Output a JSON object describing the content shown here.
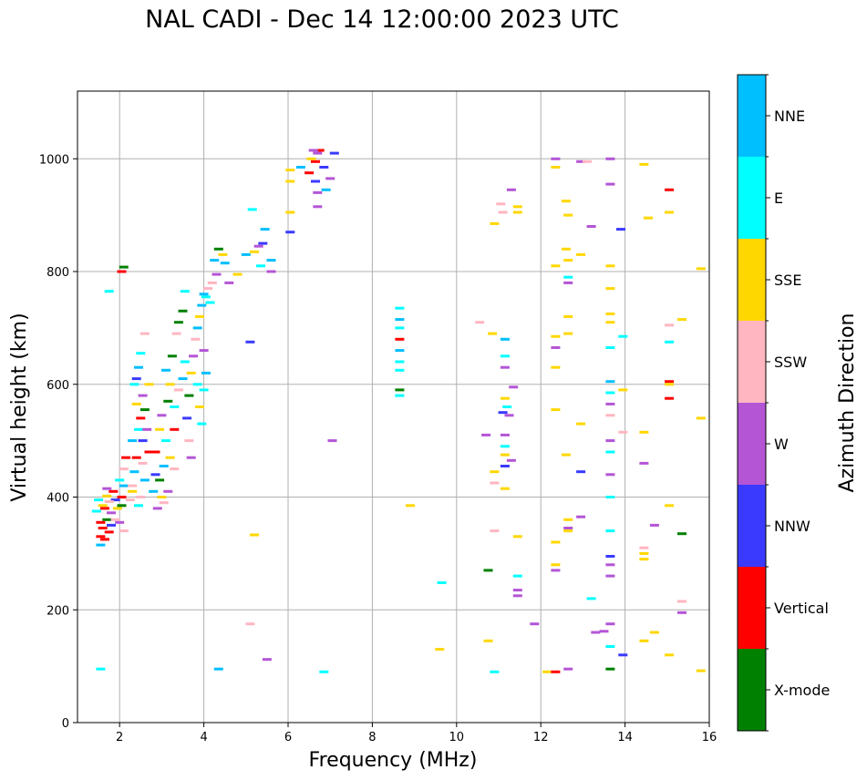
{
  "chart_data": {
    "type": "scatter",
    "title": "NAL CADI - Dec 14 12:00:00 2023 UTC",
    "xlabel": "Frequency (MHz)",
    "ylabel": "Virtual height (km)",
    "xlim": [
      1,
      16
    ],
    "ylim": [
      0,
      1120
    ],
    "xticks": [
      2,
      4,
      6,
      8,
      10,
      12,
      14,
      16
    ],
    "yticks": [
      0,
      200,
      400,
      600,
      800,
      1000
    ],
    "grid": true,
    "colorbar": {
      "label": "Azimuth Direction",
      "categories": [
        {
          "name": "X-mode",
          "color": "#008000"
        },
        {
          "name": "Vertical",
          "color": "#ff0000"
        },
        {
          "name": "NNW",
          "color": "#3a3aff"
        },
        {
          "name": "W",
          "color": "#b455d6"
        },
        {
          "name": "SSW",
          "color": "#ffb6c1"
        },
        {
          "name": "SSE",
          "color": "#ffd700"
        },
        {
          "name": "E",
          "color": "#00ffff"
        },
        {
          "name": "NNE",
          "color": "#00bfff"
        }
      ]
    },
    "points": [
      [
        1.55,
        330,
        "Vertical"
      ],
      [
        1.6,
        345,
        "Vertical"
      ],
      [
        1.65,
        325,
        "Vertical"
      ],
      [
        1.7,
        360,
        "X-mode"
      ],
      [
        1.75,
        338,
        "Vertical"
      ],
      [
        1.8,
        372,
        "W"
      ],
      [
        1.6,
        385,
        "SSE"
      ],
      [
        1.5,
        395,
        "E"
      ],
      [
        1.7,
        402,
        "SSE"
      ],
      [
        1.85,
        410,
        "Vertical"
      ],
      [
        1.9,
        395,
        "NNW"
      ],
      [
        1.55,
        355,
        "Vertical"
      ],
      [
        1.65,
        380,
        "Vertical"
      ],
      [
        1.75,
        392,
        "SSW"
      ],
      [
        1.95,
        380,
        "SSE"
      ],
      [
        2.0,
        355,
        "W"
      ],
      [
        1.45,
        375,
        "E"
      ],
      [
        1.55,
        315,
        "NNE"
      ],
      [
        1.8,
        350,
        "NNW"
      ],
      [
        1.9,
        360,
        "SSW"
      ],
      [
        2.05,
        400,
        "Vertical"
      ],
      [
        2.1,
        420,
        "NNE"
      ],
      [
        2.0,
        430,
        "E"
      ],
      [
        2.1,
        450,
        "SSW"
      ],
      [
        2.15,
        470,
        "Vertical"
      ],
      [
        2.05,
        385,
        "X-mode"
      ],
      [
        2.1,
        340,
        "SSW"
      ],
      [
        1.7,
        415,
        "W"
      ],
      [
        2.3,
        420,
        "SSW"
      ],
      [
        2.35,
        445,
        "NNE"
      ],
      [
        2.4,
        470,
        "Vertical"
      ],
      [
        2.3,
        500,
        "NNE"
      ],
      [
        2.45,
        520,
        "E"
      ],
      [
        2.5,
        540,
        "Vertical"
      ],
      [
        2.4,
        565,
        "SSE"
      ],
      [
        2.55,
        580,
        "W"
      ],
      [
        2.35,
        600,
        "E"
      ],
      [
        2.45,
        630,
        "NNE"
      ],
      [
        2.5,
        655,
        "E"
      ],
      [
        2.6,
        690,
        "SSW"
      ],
      [
        2.3,
        410,
        "SSE"
      ],
      [
        2.5,
        400,
        "SSW"
      ],
      [
        2.6,
        430,
        "NNE"
      ],
      [
        2.7,
        480,
        "Vertical"
      ],
      [
        2.65,
        520,
        "W"
      ],
      [
        2.55,
        460,
        "SSW"
      ],
      [
        2.25,
        395,
        "SSW"
      ],
      [
        2.45,
        385,
        "E"
      ],
      [
        2.6,
        555,
        "X-mode"
      ],
      [
        2.7,
        600,
        "SSE"
      ],
      [
        2.55,
        500,
        "NNW"
      ],
      [
        2.4,
        610,
        "NNW"
      ],
      [
        2.9,
        380,
        "W"
      ],
      [
        3.0,
        400,
        "SSE"
      ],
      [
        2.95,
        430,
        "X-mode"
      ],
      [
        3.05,
        455,
        "NNE"
      ],
      [
        2.85,
        480,
        "Vertical"
      ],
      [
        3.1,
        500,
        "E"
      ],
      [
        2.95,
        520,
        "SSE"
      ],
      [
        3.0,
        545,
        "W"
      ],
      [
        3.15,
        570,
        "X-mode"
      ],
      [
        3.2,
        600,
        "SSE"
      ],
      [
        3.1,
        625,
        "NNE"
      ],
      [
        3.25,
        650,
        "X-mode"
      ],
      [
        3.2,
        470,
        "SSE"
      ],
      [
        3.3,
        450,
        "SSW"
      ],
      [
        2.85,
        440,
        "NNW"
      ],
      [
        3.05,
        390,
        "SSW"
      ],
      [
        3.15,
        410,
        "W"
      ],
      [
        3.3,
        520,
        "Vertical"
      ],
      [
        3.35,
        690,
        "SSW"
      ],
      [
        3.4,
        710,
        "X-mode"
      ],
      [
        3.5,
        730,
        "X-mode"
      ],
      [
        3.3,
        560,
        "E"
      ],
      [
        2.8,
        410,
        "NNE"
      ],
      [
        3.4,
        590,
        "SSW"
      ],
      [
        3.6,
        540,
        "NNW"
      ],
      [
        3.65,
        580,
        "X-mode"
      ],
      [
        3.7,
        620,
        "SSE"
      ],
      [
        3.75,
        650,
        "W"
      ],
      [
        3.8,
        680,
        "SSW"
      ],
      [
        3.85,
        600,
        "E"
      ],
      [
        3.9,
        560,
        "SSE"
      ],
      [
        3.95,
        530,
        "E"
      ],
      [
        3.65,
        500,
        "SSW"
      ],
      [
        3.7,
        470,
        "W"
      ],
      [
        4.0,
        590,
        "E"
      ],
      [
        4.05,
        620,
        "NNE"
      ],
      [
        3.5,
        610,
        "NNE"
      ],
      [
        3.55,
        640,
        "E"
      ],
      [
        4.0,
        660,
        "W"
      ],
      [
        3.85,
        700,
        "NNE"
      ],
      [
        3.9,
        720,
        "SSE"
      ],
      [
        3.95,
        740,
        "NNE"
      ],
      [
        4.05,
        755,
        "E"
      ],
      [
        4.1,
        770,
        "SSW"
      ],
      [
        4.2,
        780,
        "SSW"
      ],
      [
        4.3,
        795,
        "W"
      ],
      [
        4.25,
        820,
        "NNE"
      ],
      [
        4.35,
        840,
        "X-mode"
      ],
      [
        4.0,
        760,
        "NNE"
      ],
      [
        4.15,
        745,
        "E"
      ],
      [
        3.55,
        765,
        "E"
      ],
      [
        4.45,
        830,
        "SSE"
      ],
      [
        4.6,
        780,
        "W"
      ],
      [
        4.8,
        795,
        "SSE"
      ],
      [
        4.5,
        815,
        "NNE"
      ],
      [
        5.0,
        830,
        "NNE"
      ],
      [
        5.2,
        835,
        "SSE"
      ],
      [
        5.4,
        850,
        "NNW"
      ],
      [
        5.45,
        875,
        "NNE"
      ],
      [
        5.6,
        800,
        "W"
      ],
      [
        5.35,
        810,
        "E"
      ],
      [
        5.6,
        820,
        "NNE"
      ],
      [
        5.3,
        845,
        "W"
      ],
      [
        5.15,
        910,
        "E"
      ],
      [
        6.05,
        870,
        "NNW"
      ],
      [
        6.05,
        905,
        "SSE"
      ],
      [
        6.05,
        960,
        "SSE"
      ],
      [
        6.05,
        980,
        "SSE"
      ],
      [
        6.3,
        985,
        "NNE"
      ],
      [
        6.5,
        975,
        "Vertical"
      ],
      [
        6.65,
        960,
        "NNW"
      ],
      [
        6.7,
        940,
        "W"
      ],
      [
        6.7,
        915,
        "W"
      ],
      [
        6.65,
        995,
        "Vertical"
      ],
      [
        6.7,
        1010,
        "W"
      ],
      [
        6.85,
        985,
        "NNW"
      ],
      [
        6.75,
        1015,
        "Vertical"
      ],
      [
        7.0,
        965,
        "W"
      ],
      [
        7.1,
        1010,
        "NNW"
      ],
      [
        6.6,
        1015,
        "W"
      ],
      [
        6.9,
        945,
        "NNE"
      ],
      [
        6.55,
        1000,
        "SSE"
      ],
      [
        1.75,
        765,
        "E"
      ],
      [
        2.05,
        800,
        "Vertical"
      ],
      [
        2.1,
        808,
        "X-mode"
      ],
      [
        1.55,
        95,
        "E"
      ],
      [
        4.35,
        95,
        "NNE"
      ],
      [
        5.1,
        175,
        "SSW"
      ],
      [
        5.5,
        112,
        "W"
      ],
      [
        5.2,
        333,
        "SSE"
      ],
      [
        5.1,
        675,
        "NNW"
      ],
      [
        6.85,
        90,
        "E"
      ],
      [
        7.05,
        500,
        "W"
      ],
      [
        8.65,
        735,
        "E"
      ],
      [
        8.65,
        715,
        "NNE"
      ],
      [
        8.65,
        700,
        "E"
      ],
      [
        8.65,
        680,
        "Vertical"
      ],
      [
        8.65,
        660,
        "NNE"
      ],
      [
        8.65,
        640,
        "E"
      ],
      [
        8.65,
        625,
        "E"
      ],
      [
        8.65,
        590,
        "X-mode"
      ],
      [
        8.65,
        580,
        "E"
      ],
      [
        8.9,
        385,
        "SSE"
      ],
      [
        9.6,
        130,
        "SSE"
      ],
      [
        9.65,
        248,
        "E"
      ],
      [
        10.55,
        710,
        "SSW"
      ],
      [
        10.7,
        510,
        "W"
      ],
      [
        10.75,
        270,
        "X-mode"
      ],
      [
        10.75,
        145,
        "SSE"
      ],
      [
        10.85,
        690,
        "SSE"
      ],
      [
        10.9,
        445,
        "SSE"
      ],
      [
        10.9,
        425,
        "SSW"
      ],
      [
        10.9,
        340,
        "SSW"
      ],
      [
        10.9,
        90,
        "E"
      ],
      [
        10.9,
        885,
        "SSE"
      ],
      [
        11.05,
        920,
        "SSW"
      ],
      [
        11.1,
        905,
        "SSW"
      ],
      [
        11.15,
        680,
        "NNE"
      ],
      [
        11.15,
        650,
        "E"
      ],
      [
        11.15,
        630,
        "W"
      ],
      [
        11.15,
        575,
        "SSE"
      ],
      [
        11.2,
        560,
        "E"
      ],
      [
        11.1,
        550,
        "NNW"
      ],
      [
        11.25,
        545,
        "W"
      ],
      [
        11.15,
        510,
        "W"
      ],
      [
        11.15,
        490,
        "E"
      ],
      [
        11.15,
        475,
        "SSE"
      ],
      [
        11.15,
        455,
        "NNW"
      ],
      [
        11.15,
        415,
        "SSE"
      ],
      [
        11.3,
        465,
        "W"
      ],
      [
        11.35,
        595,
        "W"
      ],
      [
        11.3,
        945,
        "W"
      ],
      [
        11.45,
        905,
        "SSE"
      ],
      [
        11.45,
        915,
        "SSE"
      ],
      [
        11.45,
        330,
        "SSE"
      ],
      [
        11.45,
        260,
        "E"
      ],
      [
        11.45,
        235,
        "W"
      ],
      [
        11.45,
        225,
        "W"
      ],
      [
        11.85,
        175,
        "W"
      ],
      [
        12.15,
        90,
        "SSE"
      ],
      [
        12.35,
        90,
        "Vertical"
      ],
      [
        12.35,
        1000,
        "W"
      ],
      [
        12.35,
        985,
        "SSE"
      ],
      [
        12.35,
        810,
        "SSE"
      ],
      [
        12.35,
        685,
        "SSE"
      ],
      [
        12.35,
        665,
        "W"
      ],
      [
        12.35,
        630,
        "SSE"
      ],
      [
        12.35,
        555,
        "SSE"
      ],
      [
        12.35,
        320,
        "SSE"
      ],
      [
        12.35,
        280,
        "SSE"
      ],
      [
        12.35,
        270,
        "W"
      ],
      [
        12.6,
        925,
        "SSE"
      ],
      [
        12.65,
        900,
        "SSE"
      ],
      [
        12.6,
        840,
        "SSE"
      ],
      [
        12.65,
        820,
        "SSE"
      ],
      [
        12.65,
        790,
        "E"
      ],
      [
        12.65,
        780,
        "W"
      ],
      [
        12.65,
        720,
        "SSE"
      ],
      [
        12.65,
        690,
        "SSE"
      ],
      [
        12.6,
        475,
        "SSE"
      ],
      [
        12.65,
        360,
        "SSE"
      ],
      [
        12.65,
        345,
        "W"
      ],
      [
        12.65,
        340,
        "SSE"
      ],
      [
        12.65,
        95,
        "W"
      ],
      [
        12.95,
        995,
        "W"
      ],
      [
        12.95,
        830,
        "SSE"
      ],
      [
        12.95,
        530,
        "SSE"
      ],
      [
        12.95,
        445,
        "NNW"
      ],
      [
        12.95,
        365,
        "W"
      ],
      [
        13.1,
        995,
        "SSW"
      ],
      [
        13.2,
        880,
        "W"
      ],
      [
        13.2,
        220,
        "E"
      ],
      [
        13.3,
        160,
        "W"
      ],
      [
        13.5,
        162,
        "W"
      ],
      [
        13.65,
        1000,
        "W"
      ],
      [
        13.65,
        955,
        "W"
      ],
      [
        13.65,
        810,
        "SSE"
      ],
      [
        13.65,
        770,
        "SSE"
      ],
      [
        13.65,
        725,
        "SSE"
      ],
      [
        13.65,
        710,
        "SSE"
      ],
      [
        13.65,
        665,
        "E"
      ],
      [
        13.65,
        605,
        "NNE"
      ],
      [
        13.65,
        585,
        "E"
      ],
      [
        13.65,
        565,
        "W"
      ],
      [
        13.65,
        545,
        "SSW"
      ],
      [
        13.65,
        500,
        "W"
      ],
      [
        13.65,
        480,
        "E"
      ],
      [
        13.65,
        440,
        "W"
      ],
      [
        13.65,
        400,
        "E"
      ],
      [
        13.65,
        340,
        "E"
      ],
      [
        13.65,
        295,
        "NNW"
      ],
      [
        13.65,
        280,
        "W"
      ],
      [
        13.65,
        260,
        "W"
      ],
      [
        13.65,
        175,
        "W"
      ],
      [
        13.65,
        135,
        "E"
      ],
      [
        13.65,
        95,
        "X-mode"
      ],
      [
        13.9,
        875,
        "NNW"
      ],
      [
        13.95,
        685,
        "E"
      ],
      [
        13.95,
        590,
        "SSE"
      ],
      [
        13.95,
        515,
        "SSW"
      ],
      [
        13.95,
        120,
        "NNW"
      ],
      [
        14.45,
        990,
        "SSE"
      ],
      [
        14.55,
        895,
        "SSE"
      ],
      [
        14.45,
        515,
        "SSE"
      ],
      [
        14.45,
        460,
        "W"
      ],
      [
        14.45,
        310,
        "SSW"
      ],
      [
        14.45,
        300,
        "SSE"
      ],
      [
        14.45,
        290,
        "SSE"
      ],
      [
        14.45,
        145,
        "SSE"
      ],
      [
        14.7,
        350,
        "W"
      ],
      [
        14.7,
        160,
        "SSE"
      ],
      [
        15.05,
        945,
        "Vertical"
      ],
      [
        15.05,
        905,
        "SSE"
      ],
      [
        15.05,
        705,
        "SSW"
      ],
      [
        15.05,
        675,
        "E"
      ],
      [
        15.05,
        605,
        "Vertical"
      ],
      [
        15.05,
        600,
        "SSE"
      ],
      [
        15.05,
        575,
        "Vertical"
      ],
      [
        15.05,
        385,
        "SSE"
      ],
      [
        15.05,
        120,
        "SSE"
      ],
      [
        15.35,
        715,
        "SSE"
      ],
      [
        15.35,
        335,
        "X-mode"
      ],
      [
        15.35,
        215,
        "SSW"
      ],
      [
        15.35,
        195,
        "W"
      ],
      [
        15.8,
        805,
        "SSE"
      ],
      [
        15.8,
        540,
        "SSE"
      ],
      [
        15.8,
        92,
        "SSE"
      ]
    ]
  }
}
